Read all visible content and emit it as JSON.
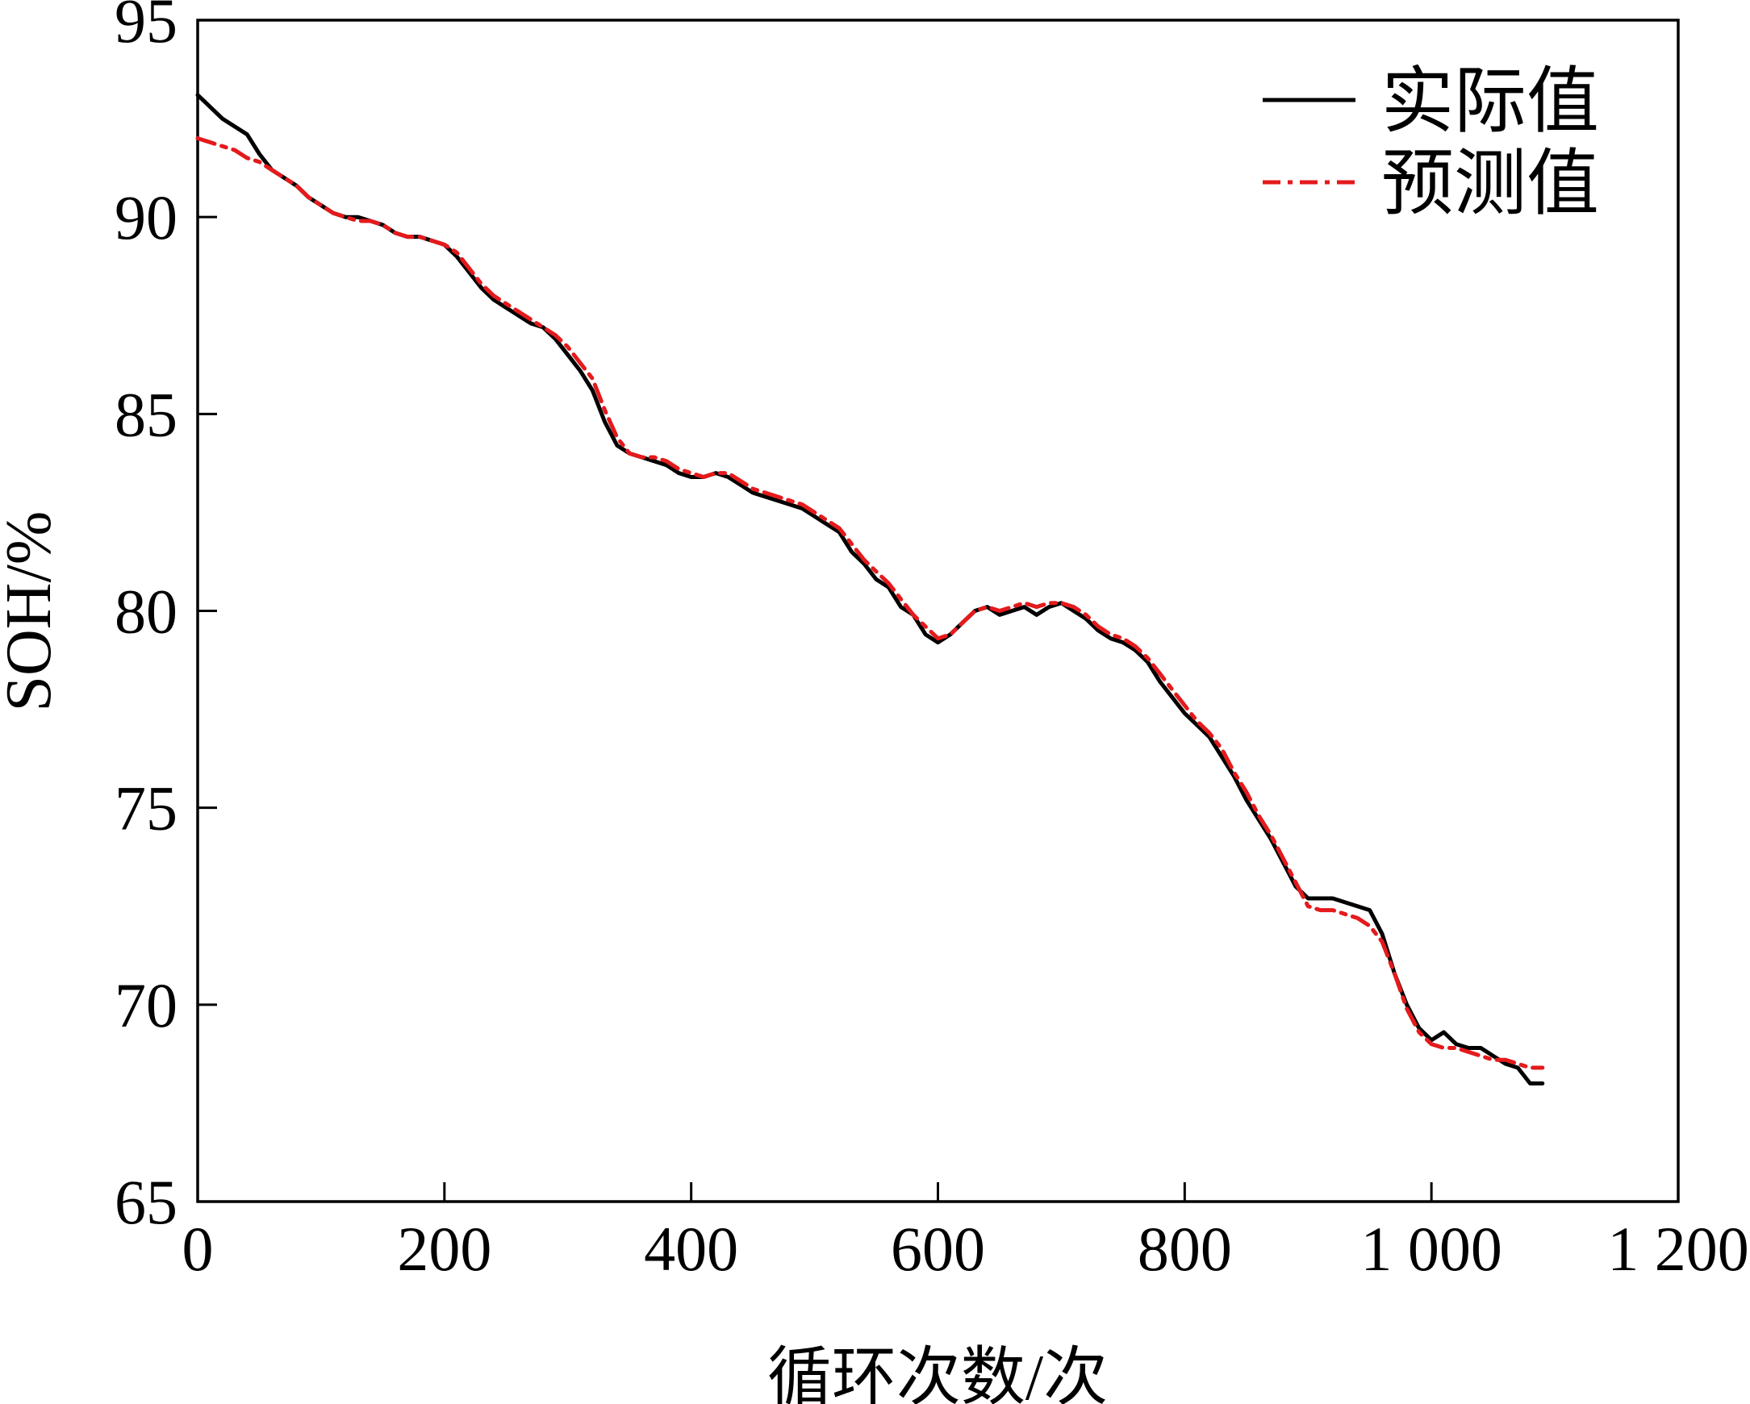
{
  "chart_data": {
    "type": "line",
    "title": "",
    "xlabel": "循环次数/次",
    "ylabel": "SOH/%",
    "xlim": [
      0,
      1200
    ],
    "ylim": [
      65,
      95
    ],
    "xticks": [
      0,
      200,
      400,
      600,
      800,
      1000,
      1200
    ],
    "xtick_labels": [
      "0",
      "200",
      "400",
      "600",
      "800",
      "1 000",
      "1 200"
    ],
    "yticks": [
      65,
      70,
      75,
      80,
      85,
      90,
      95
    ],
    "ytick_labels": [
      "65",
      "70",
      "75",
      "80",
      "85",
      "90",
      "95"
    ],
    "grid": false,
    "legend_position": "top-right",
    "series": [
      {
        "name": "实际值",
        "color": "#000000",
        "line_style": "solid",
        "points": [
          [
            0,
            93.1
          ],
          [
            10,
            92.8
          ],
          [
            20,
            92.5
          ],
          [
            30,
            92.3
          ],
          [
            40,
            92.1
          ],
          [
            50,
            91.6
          ],
          [
            60,
            91.2
          ],
          [
            70,
            91.0
          ],
          [
            80,
            90.8
          ],
          [
            90,
            90.5
          ],
          [
            100,
            90.3
          ],
          [
            110,
            90.1
          ],
          [
            120,
            90.0
          ],
          [
            130,
            90.0
          ],
          [
            140,
            89.9
          ],
          [
            150,
            89.8
          ],
          [
            160,
            89.6
          ],
          [
            170,
            89.5
          ],
          [
            180,
            89.5
          ],
          [
            190,
            89.4
          ],
          [
            200,
            89.3
          ],
          [
            210,
            89.0
          ],
          [
            220,
            88.6
          ],
          [
            230,
            88.2
          ],
          [
            240,
            87.9
          ],
          [
            250,
            87.7
          ],
          [
            260,
            87.5
          ],
          [
            270,
            87.3
          ],
          [
            280,
            87.2
          ],
          [
            290,
            86.9
          ],
          [
            300,
            86.5
          ],
          [
            310,
            86.1
          ],
          [
            320,
            85.6
          ],
          [
            330,
            84.8
          ],
          [
            340,
            84.2
          ],
          [
            350,
            84.0
          ],
          [
            360,
            83.9
          ],
          [
            370,
            83.8
          ],
          [
            380,
            83.7
          ],
          [
            390,
            83.5
          ],
          [
            400,
            83.4
          ],
          [
            410,
            83.4
          ],
          [
            420,
            83.5
          ],
          [
            430,
            83.4
          ],
          [
            440,
            83.2
          ],
          [
            450,
            83.0
          ],
          [
            460,
            82.9
          ],
          [
            470,
            82.8
          ],
          [
            480,
            82.7
          ],
          [
            490,
            82.6
          ],
          [
            500,
            82.4
          ],
          [
            510,
            82.2
          ],
          [
            520,
            82.0
          ],
          [
            530,
            81.5
          ],
          [
            540,
            81.2
          ],
          [
            550,
            80.8
          ],
          [
            560,
            80.6
          ],
          [
            570,
            80.1
          ],
          [
            580,
            79.9
          ],
          [
            590,
            79.4
          ],
          [
            600,
            79.2
          ],
          [
            610,
            79.4
          ],
          [
            620,
            79.7
          ],
          [
            630,
            80.0
          ],
          [
            640,
            80.1
          ],
          [
            650,
            79.9
          ],
          [
            660,
            80.0
          ],
          [
            670,
            80.1
          ],
          [
            680,
            79.9
          ],
          [
            690,
            80.1
          ],
          [
            700,
            80.2
          ],
          [
            710,
            80.0
          ],
          [
            720,
            79.8
          ],
          [
            730,
            79.5
          ],
          [
            740,
            79.3
          ],
          [
            750,
            79.2
          ],
          [
            760,
            79.0
          ],
          [
            770,
            78.7
          ],
          [
            780,
            78.2
          ],
          [
            790,
            77.8
          ],
          [
            800,
            77.4
          ],
          [
            810,
            77.1
          ],
          [
            820,
            76.8
          ],
          [
            830,
            76.3
          ],
          [
            840,
            75.8
          ],
          [
            850,
            75.2
          ],
          [
            860,
            74.7
          ],
          [
            870,
            74.2
          ],
          [
            880,
            73.6
          ],
          [
            890,
            73.0
          ],
          [
            900,
            72.7
          ],
          [
            910,
            72.7
          ],
          [
            920,
            72.7
          ],
          [
            930,
            72.6
          ],
          [
            940,
            72.5
          ],
          [
            950,
            72.4
          ],
          [
            960,
            71.8
          ],
          [
            970,
            70.8
          ],
          [
            980,
            70.0
          ],
          [
            990,
            69.4
          ],
          [
            1000,
            69.1
          ],
          [
            1010,
            69.3
          ],
          [
            1020,
            69.0
          ],
          [
            1030,
            68.9
          ],
          [
            1040,
            68.9
          ],
          [
            1050,
            68.7
          ],
          [
            1060,
            68.5
          ],
          [
            1070,
            68.4
          ],
          [
            1080,
            68.0
          ],
          [
            1090,
            68.0
          ]
        ]
      },
      {
        "name": "预测值",
        "color": "#e41a1c",
        "line_style": "dash-dot",
        "points": [
          [
            0,
            92.0
          ],
          [
            10,
            91.9
          ],
          [
            20,
            91.8
          ],
          [
            30,
            91.7
          ],
          [
            40,
            91.5
          ],
          [
            50,
            91.4
          ],
          [
            60,
            91.2
          ],
          [
            70,
            91.0
          ],
          [
            80,
            90.8
          ],
          [
            90,
            90.5
          ],
          [
            100,
            90.3
          ],
          [
            110,
            90.1
          ],
          [
            120,
            90.0
          ],
          [
            130,
            89.9
          ],
          [
            140,
            89.9
          ],
          [
            150,
            89.8
          ],
          [
            160,
            89.6
          ],
          [
            170,
            89.5
          ],
          [
            180,
            89.5
          ],
          [
            190,
            89.4
          ],
          [
            200,
            89.3
          ],
          [
            210,
            89.1
          ],
          [
            220,
            88.7
          ],
          [
            230,
            88.3
          ],
          [
            240,
            88.0
          ],
          [
            250,
            87.8
          ],
          [
            260,
            87.6
          ],
          [
            270,
            87.4
          ],
          [
            280,
            87.2
          ],
          [
            290,
            87.0
          ],
          [
            300,
            86.7
          ],
          [
            310,
            86.3
          ],
          [
            320,
            85.9
          ],
          [
            330,
            85.1
          ],
          [
            340,
            84.4
          ],
          [
            350,
            84.0
          ],
          [
            360,
            83.9
          ],
          [
            370,
            83.9
          ],
          [
            380,
            83.8
          ],
          [
            390,
            83.6
          ],
          [
            400,
            83.5
          ],
          [
            410,
            83.4
          ],
          [
            420,
            83.5
          ],
          [
            430,
            83.5
          ],
          [
            440,
            83.3
          ],
          [
            450,
            83.1
          ],
          [
            460,
            83.0
          ],
          [
            470,
            82.9
          ],
          [
            480,
            82.8
          ],
          [
            490,
            82.7
          ],
          [
            500,
            82.5
          ],
          [
            510,
            82.3
          ],
          [
            520,
            82.1
          ],
          [
            530,
            81.7
          ],
          [
            540,
            81.3
          ],
          [
            550,
            81.0
          ],
          [
            560,
            80.7
          ],
          [
            570,
            80.3
          ],
          [
            580,
            79.9
          ],
          [
            590,
            79.6
          ],
          [
            600,
            79.3
          ],
          [
            610,
            79.4
          ],
          [
            620,
            79.7
          ],
          [
            630,
            80.0
          ],
          [
            640,
            80.1
          ],
          [
            650,
            80.0
          ],
          [
            660,
            80.1
          ],
          [
            670,
            80.2
          ],
          [
            680,
            80.1
          ],
          [
            690,
            80.2
          ],
          [
            700,
            80.2
          ],
          [
            710,
            80.1
          ],
          [
            720,
            79.9
          ],
          [
            730,
            79.6
          ],
          [
            740,
            79.4
          ],
          [
            750,
            79.3
          ],
          [
            760,
            79.1
          ],
          [
            770,
            78.8
          ],
          [
            780,
            78.4
          ],
          [
            790,
            78.0
          ],
          [
            800,
            77.6
          ],
          [
            810,
            77.2
          ],
          [
            820,
            76.9
          ],
          [
            830,
            76.5
          ],
          [
            840,
            75.9
          ],
          [
            850,
            75.4
          ],
          [
            860,
            74.8
          ],
          [
            870,
            74.3
          ],
          [
            880,
            73.7
          ],
          [
            890,
            73.1
          ],
          [
            900,
            72.5
          ],
          [
            910,
            72.4
          ],
          [
            920,
            72.4
          ],
          [
            930,
            72.3
          ],
          [
            940,
            72.2
          ],
          [
            950,
            72.0
          ],
          [
            960,
            71.6
          ],
          [
            970,
            70.8
          ],
          [
            980,
            69.9
          ],
          [
            990,
            69.3
          ],
          [
            1000,
            69.0
          ],
          [
            1010,
            68.9
          ],
          [
            1020,
            68.9
          ],
          [
            1030,
            68.8
          ],
          [
            1040,
            68.7
          ],
          [
            1050,
            68.6
          ],
          [
            1060,
            68.6
          ],
          [
            1070,
            68.5
          ],
          [
            1080,
            68.4
          ],
          [
            1090,
            68.4
          ]
        ]
      }
    ]
  }
}
